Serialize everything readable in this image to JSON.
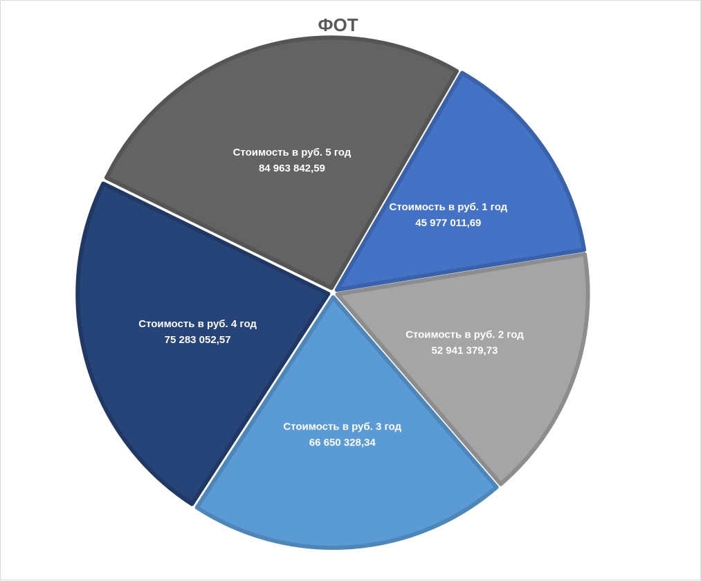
{
  "chart_data": {
    "type": "pie",
    "title": "ФОТ",
    "slices": [
      {
        "category": "Стоимость в руб. 1 год",
        "value_label": "45 977 011,69",
        "value": 45977011.69,
        "color": "#4472c4",
        "edge": "#3a62aa"
      },
      {
        "category": "Стоимость в руб. 2 год",
        "value_label": "52 941 379,73",
        "value": 52941379.73,
        "color": "#a5a5a5",
        "edge": "#8d8d8d"
      },
      {
        "category": "Стоимость в руб. 3 год",
        "value_label": "66 650 328,34",
        "value": 66650328.34,
        "color": "#5b9bd5",
        "edge": "#4d86b9"
      },
      {
        "category": "Стоимость в руб. 4 год",
        "value_label": "75 283 052,57",
        "value": 75283052.57,
        "color": "#264478",
        "edge": "#1f3864"
      },
      {
        "category": "Стоимость в руб. 5 год",
        "value_label": "84 963 842,59",
        "value": 84963842.59,
        "color": "#636363",
        "edge": "#555555"
      }
    ],
    "start_angle_deg": 30,
    "direction": "clockwise",
    "exploded": true,
    "legend": "none"
  }
}
